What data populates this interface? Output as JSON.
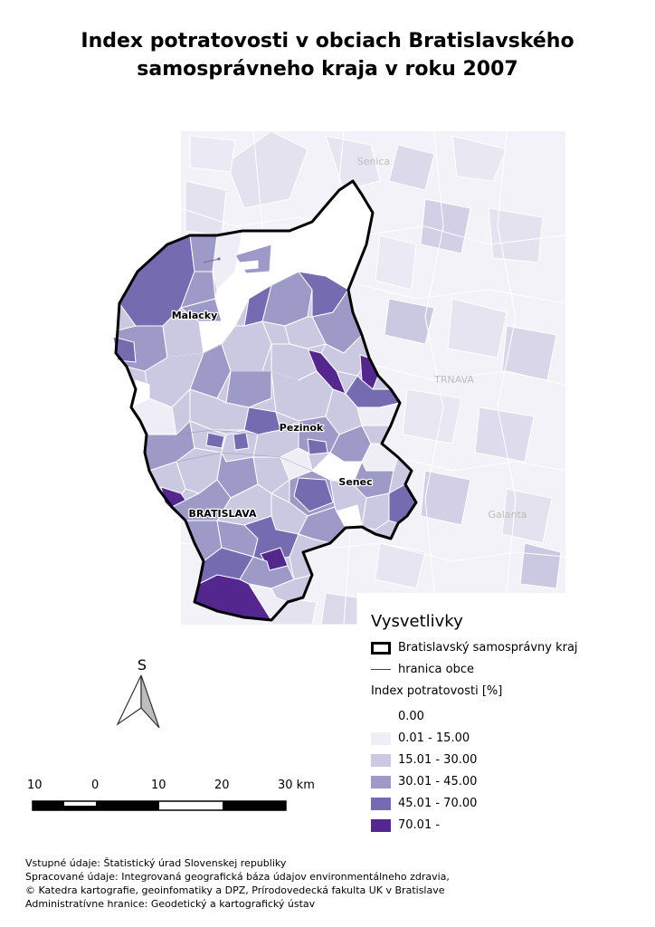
{
  "title": {
    "line1": "Index potratovosti v obciach Bratislavského",
    "line2": "samosprávneho kraja v roku 2007"
  },
  "map": {
    "city_labels": [
      "Malacky",
      "Pezinok",
      "Senec",
      "BRATISLAVA"
    ],
    "neighbor_labels": [
      "Senica",
      "TRNAVA",
      "Galanta"
    ]
  },
  "north_arrow": {
    "label": "S"
  },
  "legend": {
    "title": "Vysvetlivky",
    "region_border": "Bratislavský samosprávny kraj",
    "municipality_border": "hranica obce",
    "index_title": "Index potratovosti [%]",
    "classes": [
      {
        "label": "0.00",
        "color": "#ffffff"
      },
      {
        "label": "0.01 - 15.00",
        "color": "#efedf5"
      },
      {
        "label": "15.01 - 30.00",
        "color": "#cbc9e2"
      },
      {
        "label": "30.01 - 45.00",
        "color": "#9e9ac8"
      },
      {
        "label": "45.01 - 70.00",
        "color": "#756bb1"
      },
      {
        "label": "70.01 -",
        "color": "#54278f"
      }
    ]
  },
  "scale_bar": {
    "labels": [
      "10",
      "0",
      "10",
      "20",
      "30 km"
    ]
  },
  "footer": {
    "lines": [
      "Vstupné údaje: Štatistický úrad Slovenskej republiky",
      "Spracované údaje: Integrovaná geografická báza údajov environmentálneho zdravia,",
      "© Katedra kartografie, geoinfomatiky a DPZ, Prírodovedecká fakulta UK v Bratislave",
      "Administratívne hranice: Geodetický a kartografický ústav"
    ]
  }
}
